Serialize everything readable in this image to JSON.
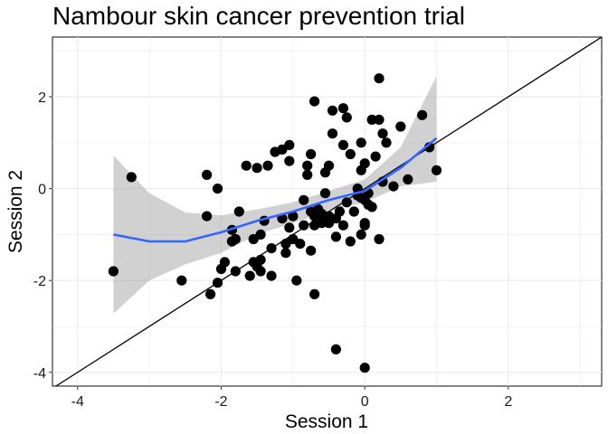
{
  "chart_data": {
    "type": "scatter",
    "title": "Nambour skin cancer prevention trial",
    "xlabel": "Session 1",
    "ylabel": "Session 2",
    "xlim": [
      -4.35,
      3.3
    ],
    "ylim": [
      -4.3,
      3.3
    ],
    "x_ticks": [
      -4,
      -2,
      0,
      2
    ],
    "y_ticks": [
      -4,
      -2,
      0,
      2
    ],
    "x_tick_labels": [
      "-4",
      "-2",
      "0",
      "2"
    ],
    "y_tick_labels": [
      "-4",
      "-2",
      "0",
      "2"
    ],
    "grid": true,
    "reference_line": {
      "slope": 1,
      "intercept": 0,
      "color": "#000000"
    },
    "points": [
      [
        -3.5,
        -1.8
      ],
      [
        -3.25,
        0.25
      ],
      [
        -2.55,
        -2.0
      ],
      [
        -2.2,
        0.3
      ],
      [
        -2.2,
        -0.6
      ],
      [
        -2.15,
        -2.3
      ],
      [
        -2.05,
        0.0
      ],
      [
        -2.05,
        -2.05
      ],
      [
        -2.0,
        -1.75
      ],
      [
        -1.95,
        -1.6
      ],
      [
        -1.85,
        -0.9
      ],
      [
        -1.85,
        -1.15
      ],
      [
        -1.8,
        -1.8
      ],
      [
        -1.8,
        -1.1
      ],
      [
        -1.75,
        -0.5
      ],
      [
        -1.65,
        0.5
      ],
      [
        -1.6,
        -1.9
      ],
      [
        -1.55,
        -1.1
      ],
      [
        -1.55,
        -1.6
      ],
      [
        -1.5,
        0.45
      ],
      [
        -1.5,
        -1.7
      ],
      [
        -1.45,
        -1.8
      ],
      [
        -1.45,
        -1.55
      ],
      [
        -1.45,
        -1.0
      ],
      [
        -1.4,
        -0.7
      ],
      [
        -1.35,
        0.5
      ],
      [
        -1.3,
        -1.3
      ],
      [
        -1.3,
        -1.9
      ],
      [
        -1.25,
        0.8
      ],
      [
        -1.15,
        0.85
      ],
      [
        -1.15,
        -0.65
      ],
      [
        -1.1,
        -1.4
      ],
      [
        -1.1,
        -1.2
      ],
      [
        -1.05,
        0.95
      ],
      [
        -1.05,
        -0.85
      ],
      [
        -1.05,
        0.6
      ],
      [
        -1.0,
        -0.6
      ],
      [
        -1.0,
        -1.1
      ],
      [
        -0.95,
        -2.0
      ],
      [
        -0.9,
        -1.2
      ],
      [
        -0.85,
        -0.8
      ],
      [
        -0.85,
        -0.25
      ],
      [
        -0.8,
        0.5
      ],
      [
        -0.8,
        0.3
      ],
      [
        -0.75,
        -1.35
      ],
      [
        -0.75,
        -0.5
      ],
      [
        -0.75,
        0.75
      ],
      [
        -0.7,
        1.9
      ],
      [
        -0.7,
        -2.3
      ],
      [
        -0.7,
        -0.8
      ],
      [
        -0.7,
        -0.6
      ],
      [
        -0.65,
        -0.45
      ],
      [
        -0.6,
        -0.75
      ],
      [
        -0.6,
        -0.55
      ],
      [
        -0.55,
        -0.1
      ],
      [
        -0.55,
        0.35
      ],
      [
        -0.55,
        -0.65
      ],
      [
        -0.5,
        0.5
      ],
      [
        -0.5,
        -0.6
      ],
      [
        -0.5,
        -0.75
      ],
      [
        -0.45,
        1.7
      ],
      [
        -0.45,
        1.2
      ],
      [
        -0.4,
        -0.65
      ],
      [
        -0.4,
        -1.05
      ],
      [
        -0.4,
        -3.5
      ],
      [
        -0.35,
        -0.5
      ],
      [
        -0.3,
        1.75
      ],
      [
        -0.3,
        0.95
      ],
      [
        -0.3,
        -0.8
      ],
      [
        -0.25,
        1.55
      ],
      [
        -0.25,
        -0.3
      ],
      [
        -0.2,
        0.75
      ],
      [
        -0.2,
        -1.15
      ],
      [
        -0.15,
        -0.5
      ],
      [
        -0.1,
        0.0
      ],
      [
        -0.1,
        -0.15
      ],
      [
        -0.05,
        1.0
      ],
      [
        -0.05,
        0.4
      ],
      [
        -0.05,
        -0.2
      ],
      [
        -0.05,
        -1.0
      ],
      [
        0.0,
        0.55
      ],
      [
        0.0,
        -0.25
      ],
      [
        0.0,
        -0.8
      ],
      [
        0.0,
        -0.75
      ],
      [
        0.0,
        -3.9
      ],
      [
        0.05,
        -0.1
      ],
      [
        0.05,
        -0.35
      ],
      [
        0.1,
        1.5
      ],
      [
        0.1,
        -0.4
      ],
      [
        0.15,
        0.7
      ],
      [
        0.2,
        1.5
      ],
      [
        0.2,
        2.4
      ],
      [
        0.2,
        -1.1
      ],
      [
        0.25,
        1.2
      ],
      [
        0.25,
        0.15
      ],
      [
        0.3,
        1.0
      ],
      [
        0.4,
        0.05
      ],
      [
        0.5,
        1.35
      ],
      [
        0.6,
        0.2
      ],
      [
        0.8,
        1.6
      ],
      [
        0.9,
        0.9
      ],
      [
        1.0,
        0.4
      ]
    ],
    "smooth": {
      "method": "loess",
      "color": "#3366ff",
      "x": [
        -3.5,
        -3.0,
        -2.5,
        -2.0,
        -1.5,
        -1.0,
        -0.5,
        0.0,
        0.5,
        1.0
      ],
      "y": [
        -1.0,
        -1.15,
        -1.15,
        -0.95,
        -0.7,
        -0.5,
        -0.25,
        -0.05,
        0.45,
        1.1
      ],
      "lower": [
        -2.72,
        -2.0,
        -1.65,
        -1.4,
        -1.0,
        -0.75,
        -0.48,
        -0.3,
        0.05,
        0.15
      ],
      "upper": [
        0.72,
        -0.1,
        -0.52,
        -0.58,
        -0.45,
        -0.3,
        -0.05,
        0.2,
        0.9,
        2.45
      ]
    }
  }
}
